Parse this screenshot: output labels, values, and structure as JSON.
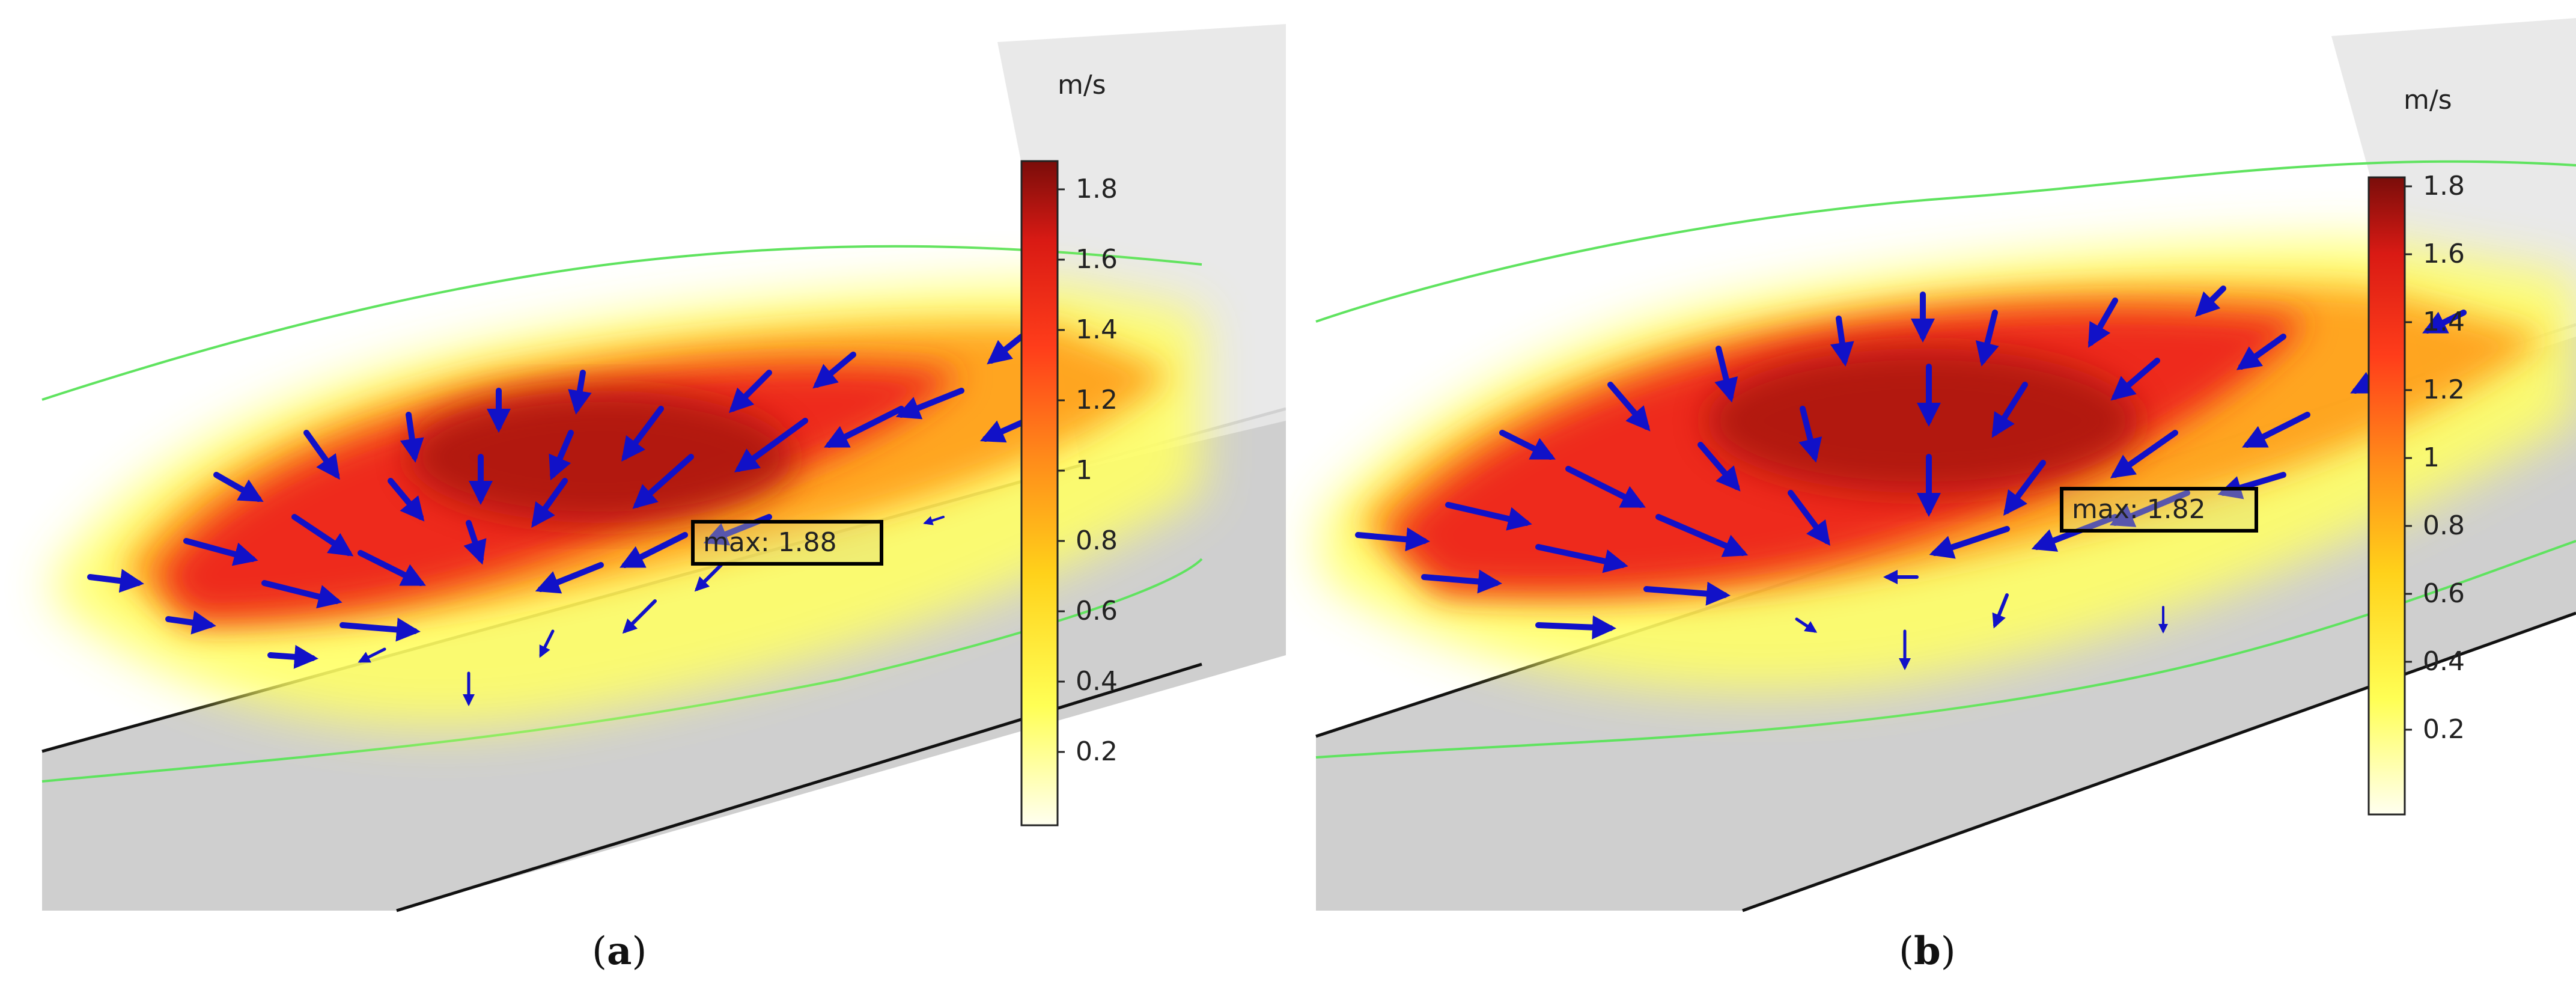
{
  "panels": [
    {
      "id": "a",
      "caption_open": "(",
      "caption_letter": "a",
      "caption_close": ")",
      "unit": "m/s",
      "max_label": "max: 1.88",
      "ticks": [
        "1.8",
        "1.6",
        "1.4",
        "1.2",
        "1",
        "0.8",
        "0.6",
        "0.4",
        "0.2"
      ]
    },
    {
      "id": "b",
      "caption_open": "(",
      "caption_letter": "b",
      "caption_close": ")",
      "unit": "m/s",
      "max_label": "max: 1.82",
      "ticks": [
        "1.8",
        "1.6",
        "1.4",
        "1.2",
        "1",
        "0.8",
        "0.6",
        "0.4",
        "0.2"
      ]
    }
  ],
  "colors": {
    "surface": "#cfcfcf",
    "edge": "#111111",
    "contour": "#5fe35f",
    "arrow": "#1111c8",
    "colormap": [
      "#fffff0",
      "#ffff33",
      "#ffd11a",
      "#ff8c1a",
      "#ff3d1a",
      "#d91a14",
      "#7a0d0a"
    ]
  }
}
